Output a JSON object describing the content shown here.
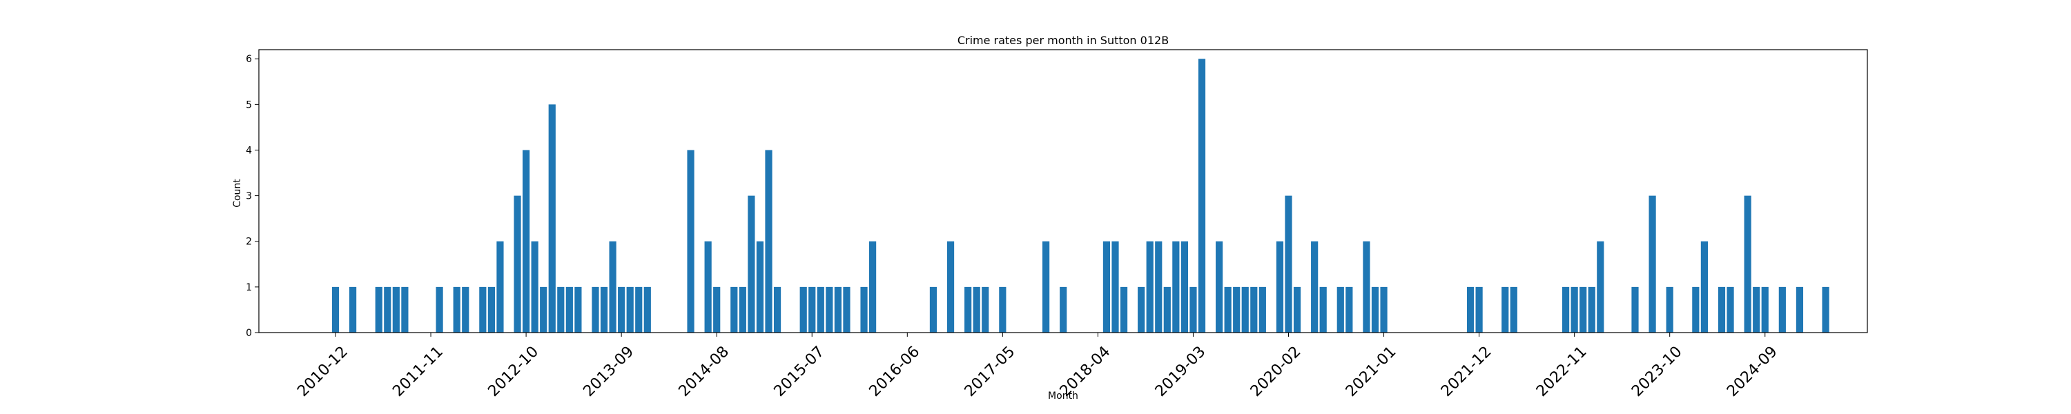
{
  "chart_data": {
    "type": "bar",
    "title": "Crime rates per month in Sutton 012B",
    "xlabel": "Month",
    "ylabel": "Count",
    "ylim": [
      0,
      6.2
    ],
    "yticks": [
      0,
      1,
      2,
      3,
      4,
      5,
      6
    ],
    "bar_color": "#1f77b4",
    "grid": false,
    "legend": "none",
    "xtick_labels": [
      "2010-12",
      "2011-11",
      "2012-10",
      "2013-09",
      "2014-08",
      "2015-07",
      "2016-06",
      "2017-05",
      "2018-04",
      "2019-03",
      "2020-02",
      "2021-01",
      "2021-12",
      "2022-11",
      "2023-10",
      "2024-09"
    ],
    "bars": [
      {
        "month": "2010-12",
        "value": 1
      },
      {
        "month": "2011-02",
        "value": 1
      },
      {
        "month": "2011-05",
        "value": 1
      },
      {
        "month": "2011-06",
        "value": 1
      },
      {
        "month": "2011-07",
        "value": 1
      },
      {
        "month": "2011-08",
        "value": 1
      },
      {
        "month": "2011-12",
        "value": 1
      },
      {
        "month": "2012-02",
        "value": 1
      },
      {
        "month": "2012-03",
        "value": 1
      },
      {
        "month": "2012-05",
        "value": 1
      },
      {
        "month": "2012-06",
        "value": 1
      },
      {
        "month": "2012-07",
        "value": 2
      },
      {
        "month": "2012-09",
        "value": 3
      },
      {
        "month": "2012-10",
        "value": 4
      },
      {
        "month": "2012-11",
        "value": 2
      },
      {
        "month": "2012-12",
        "value": 1
      },
      {
        "month": "2013-01",
        "value": 5
      },
      {
        "month": "2013-02",
        "value": 1
      },
      {
        "month": "2013-03",
        "value": 1
      },
      {
        "month": "2013-04",
        "value": 1
      },
      {
        "month": "2013-06",
        "value": 1
      },
      {
        "month": "2013-07",
        "value": 1
      },
      {
        "month": "2013-08",
        "value": 2
      },
      {
        "month": "2013-09",
        "value": 1
      },
      {
        "month": "2013-10",
        "value": 1
      },
      {
        "month": "2013-11",
        "value": 1
      },
      {
        "month": "2013-12",
        "value": 1
      },
      {
        "month": "2014-05",
        "value": 4
      },
      {
        "month": "2014-07",
        "value": 2
      },
      {
        "month": "2014-08",
        "value": 1
      },
      {
        "month": "2014-10",
        "value": 1
      },
      {
        "month": "2014-11",
        "value": 1
      },
      {
        "month": "2014-12",
        "value": 3
      },
      {
        "month": "2015-01",
        "value": 2
      },
      {
        "month": "2015-02",
        "value": 4
      },
      {
        "month": "2015-03",
        "value": 1
      },
      {
        "month": "2015-06",
        "value": 1
      },
      {
        "month": "2015-07",
        "value": 1
      },
      {
        "month": "2015-08",
        "value": 1
      },
      {
        "month": "2015-09",
        "value": 1
      },
      {
        "month": "2015-10",
        "value": 1
      },
      {
        "month": "2015-11",
        "value": 1
      },
      {
        "month": "2016-01",
        "value": 1
      },
      {
        "month": "2016-02",
        "value": 2
      },
      {
        "month": "2016-09",
        "value": 1
      },
      {
        "month": "2016-11",
        "value": 2
      },
      {
        "month": "2017-01",
        "value": 1
      },
      {
        "month": "2017-02",
        "value": 1
      },
      {
        "month": "2017-03",
        "value": 1
      },
      {
        "month": "2017-05",
        "value": 1
      },
      {
        "month": "2017-10",
        "value": 2
      },
      {
        "month": "2017-12",
        "value": 1
      },
      {
        "month": "2018-05",
        "value": 2
      },
      {
        "month": "2018-06",
        "value": 2
      },
      {
        "month": "2018-07",
        "value": 1
      },
      {
        "month": "2018-09",
        "value": 1
      },
      {
        "month": "2018-10",
        "value": 2
      },
      {
        "month": "2018-11",
        "value": 2
      },
      {
        "month": "2018-12",
        "value": 1
      },
      {
        "month": "2019-01",
        "value": 2
      },
      {
        "month": "2019-02",
        "value": 2
      },
      {
        "month": "2019-03",
        "value": 1
      },
      {
        "month": "2019-04",
        "value": 6
      },
      {
        "month": "2019-06",
        "value": 2
      },
      {
        "month": "2019-07",
        "value": 1
      },
      {
        "month": "2019-08",
        "value": 1
      },
      {
        "month": "2019-09",
        "value": 1
      },
      {
        "month": "2019-10",
        "value": 1
      },
      {
        "month": "2019-11",
        "value": 1
      },
      {
        "month": "2020-01",
        "value": 2
      },
      {
        "month": "2020-02",
        "value": 3
      },
      {
        "month": "2020-03",
        "value": 1
      },
      {
        "month": "2020-05",
        "value": 2
      },
      {
        "month": "2020-06",
        "value": 1
      },
      {
        "month": "2020-08",
        "value": 1
      },
      {
        "month": "2020-09",
        "value": 1
      },
      {
        "month": "2020-11",
        "value": 2
      },
      {
        "month": "2020-12",
        "value": 1
      },
      {
        "month": "2021-01",
        "value": 1
      },
      {
        "month": "2021-11",
        "value": 1
      },
      {
        "month": "2021-12",
        "value": 1
      },
      {
        "month": "2022-03",
        "value": 1
      },
      {
        "month": "2022-04",
        "value": 1
      },
      {
        "month": "2022-10",
        "value": 1
      },
      {
        "month": "2022-11",
        "value": 1
      },
      {
        "month": "2022-12",
        "value": 1
      },
      {
        "month": "2023-01",
        "value": 1
      },
      {
        "month": "2023-02",
        "value": 2
      },
      {
        "month": "2023-06",
        "value": 1
      },
      {
        "month": "2023-08",
        "value": 3
      },
      {
        "month": "2023-10",
        "value": 1
      },
      {
        "month": "2024-01",
        "value": 1
      },
      {
        "month": "2024-02",
        "value": 2
      },
      {
        "month": "2024-04",
        "value": 1
      },
      {
        "month": "2024-05",
        "value": 1
      },
      {
        "month": "2024-07",
        "value": 3
      },
      {
        "month": "2024-08",
        "value": 1
      },
      {
        "month": "2024-09",
        "value": 1
      },
      {
        "month": "2024-11",
        "value": 1
      },
      {
        "month": "2025-01",
        "value": 1
      },
      {
        "month": "2025-04",
        "value": 1
      }
    ]
  }
}
